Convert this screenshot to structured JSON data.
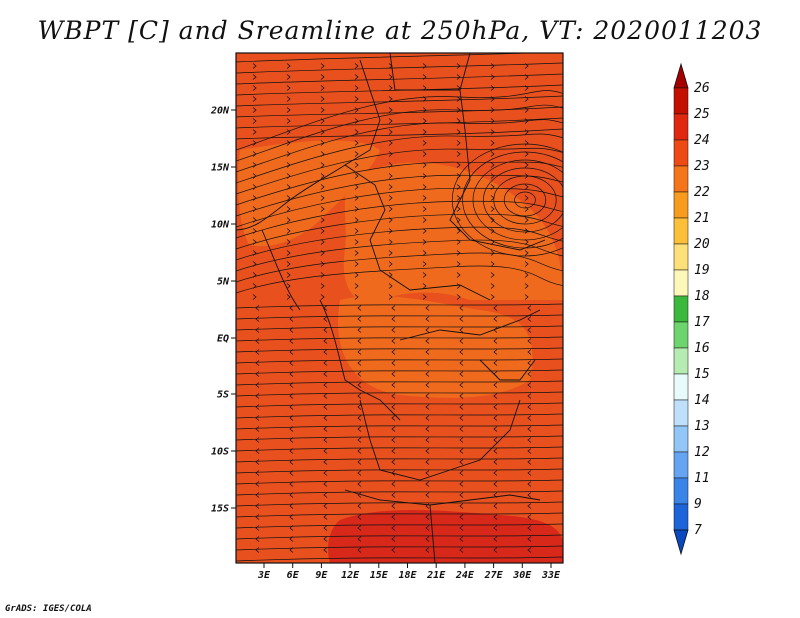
{
  "title": "WBPT [C] and Sreamline at 250hPa, VT: 2020011203",
  "footer": "GrADS: IGES/COLA",
  "map": {
    "lat_ticks": [
      "20N",
      "15N",
      "10N",
      "5N",
      "EQ",
      "5S",
      "10S",
      "15S"
    ],
    "lon_ticks": [
      "3E",
      "6E",
      "9E",
      "12E",
      "15E",
      "18E",
      "21E",
      "24E",
      "27E",
      "30E",
      "33E"
    ],
    "fill_colors": {
      "base": "#e8501e",
      "light": "#f06a1e",
      "dark": "#d8281a",
      "lighter": "#f0962a"
    }
  },
  "colorbar": {
    "labels": [
      "26",
      "25",
      "24",
      "23",
      "22",
      "21",
      "20",
      "19",
      "18",
      "17",
      "16",
      "15",
      "14",
      "13",
      "12",
      "11",
      "9",
      "7"
    ],
    "colors": [
      "#a50000",
      "#c41000",
      "#e02810",
      "#ee4a16",
      "#f5751b",
      "#f99b1e",
      "#fbbf3a",
      "#fde07a",
      "#fdf7b8",
      "#3cb83c",
      "#6ed46e",
      "#b6ecb2",
      "#e8fbfb",
      "#bfe0fb",
      "#92c6f7",
      "#64a4f0",
      "#3a84e8",
      "#1c64d8",
      "#0a48c0"
    ]
  }
}
